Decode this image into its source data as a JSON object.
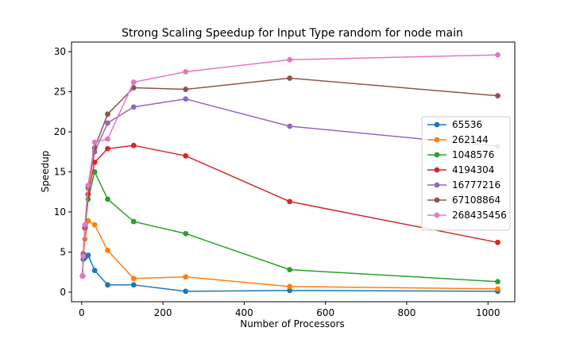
{
  "chart_data": {
    "type": "line",
    "title": "Strong Scaling Speedup for Input Type random for node main",
    "xlabel": "Number of Processors",
    "ylabel": "Speedup",
    "xlim": [
      -25,
      1066
    ],
    "ylim": [
      -1.2,
      31.2
    ],
    "xticks": [
      0,
      200,
      400,
      600,
      800,
      1000
    ],
    "yticks": [
      0,
      5,
      10,
      15,
      20,
      25,
      30
    ],
    "grid": false,
    "legend_position": "center-right",
    "x": [
      2,
      4,
      8,
      16,
      32,
      64,
      128,
      256,
      512,
      1024
    ],
    "series": [
      {
        "name": "65536",
        "color": "#1f77b4",
        "values": [
          2.0,
          4.1,
          4.3,
          4.6,
          2.7,
          0.9,
          0.9,
          0.1,
          0.2,
          0.1
        ]
      },
      {
        "name": "262144",
        "color": "#ff7f0e",
        "values": [
          2.0,
          4.5,
          6.6,
          8.9,
          8.4,
          5.2,
          1.7,
          1.9,
          0.7,
          0.4
        ]
      },
      {
        "name": "1048576",
        "color": "#2ca02c",
        "values": [
          2.0,
          4.6,
          8.0,
          11.6,
          15.0,
          11.6,
          8.8,
          7.3,
          2.8,
          1.3
        ]
      },
      {
        "name": "4194304",
        "color": "#d62728",
        "values": [
          2.0,
          4.7,
          8.0,
          12.2,
          16.2,
          17.9,
          18.3,
          17.0,
          11.3,
          6.2
        ]
      },
      {
        "name": "16777216",
        "color": "#9467bd",
        "values": [
          2.0,
          4.8,
          8.1,
          13.2,
          17.5,
          21.1,
          23.1,
          24.1,
          20.7,
          18.2
        ]
      },
      {
        "name": "67108864",
        "color": "#8c564b",
        "values": [
          2.0,
          4.7,
          8.0,
          13.0,
          18.0,
          22.2,
          25.5,
          25.3,
          26.7,
          24.5
        ]
      },
      {
        "name": "268435456",
        "color": "#e377c2",
        "values": [
          2.0,
          4.5,
          8.4,
          13.3,
          18.7,
          19.1,
          26.2,
          27.5,
          29.0,
          29.6
        ]
      }
    ]
  }
}
